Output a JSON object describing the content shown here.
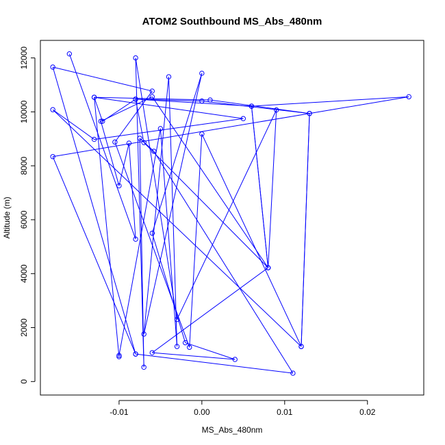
{
  "chart_data": {
    "type": "line",
    "title": "ATOM2 Southbound MS_Abs_480nm",
    "xlabel": "MS_Abs_480nm",
    "ylabel": "Altitude (m)",
    "xlim": [
      -0.0195,
      0.0268
    ],
    "ylim": [
      -500,
      12650
    ],
    "xticks": [
      -0.01,
      0.0,
      0.01,
      0.02
    ],
    "xtick_labels": [
      "-0.01",
      "0.00",
      "0.01",
      "0.02"
    ],
    "yticks": [
      0,
      2000,
      4000,
      6000,
      8000,
      10000,
      12000
    ],
    "ytick_labels": [
      "0",
      "2000",
      "4000",
      "6000",
      "8000",
      "10000",
      "12000"
    ],
    "grid": false,
    "series": [
      {
        "color": "#0000ff",
        "marker": "open-circle",
        "points": [
          {
            "x": -0.016,
            "y": 12150
          },
          {
            "x": -0.008,
            "y": 5280
          },
          {
            "x": -0.0088,
            "y": 8840
          },
          {
            "x": -0.01,
            "y": 7260
          },
          {
            "x": -0.0122,
            "y": 9650
          },
          {
            "x": -0.006,
            "y": 10560
          },
          {
            "x": 0.008,
            "y": 4220
          },
          {
            "x": 0.009,
            "y": 10070
          },
          {
            "x": -0.003,
            "y": 2300
          },
          {
            "x": -0.008,
            "y": 12000
          },
          {
            "x": -0.007,
            "y": 530
          },
          {
            "x": -0.0075,
            "y": 9020
          },
          {
            "x": -0.0058,
            "y": 8540
          },
          {
            "x": 0.011,
            "y": 310
          },
          {
            "x": -0.008,
            "y": 1020
          },
          {
            "x": -0.018,
            "y": 11660
          },
          {
            "x": -0.006,
            "y": 10770
          },
          {
            "x": -0.0105,
            "y": 8880
          },
          {
            "x": -0.0015,
            "y": 1270
          },
          {
            "x": 0.0,
            "y": 9180
          },
          {
            "x": 0.012,
            "y": 1300
          },
          {
            "x": -0.018,
            "y": 10080
          },
          {
            "x": -0.013,
            "y": 8980
          },
          {
            "x": 0.005,
            "y": 9750
          },
          {
            "x": -0.013,
            "y": 10540
          },
          {
            "x": -0.01,
            "y": 920
          },
          {
            "x": -0.01,
            "y": 970
          },
          {
            "x": -0.005,
            "y": 9380
          },
          {
            "x": -0.003,
            "y": 1300
          },
          {
            "x": -0.004,
            "y": 11300
          },
          {
            "x": -0.007,
            "y": 1760
          },
          {
            "x": 0.0,
            "y": 11430
          },
          {
            "x": -0.006,
            "y": 5500
          },
          {
            "x": -0.002,
            "y": 1440
          },
          {
            "x": 0.004,
            "y": 820
          },
          {
            "x": -0.006,
            "y": 1070
          },
          {
            "x": 0.008,
            "y": 4220
          },
          {
            "x": -0.007,
            "y": 8860
          },
          {
            "x": -0.008,
            "y": 10470
          },
          {
            "x": 0.0,
            "y": 10400
          },
          {
            "x": 0.013,
            "y": 9940
          },
          {
            "x": 0.012,
            "y": 1300
          },
          {
            "x": 0.013,
            "y": 9940
          },
          {
            "x": 0.001,
            "y": 10440
          },
          {
            "x": -0.013,
            "y": 10540
          },
          {
            "x": -0.012,
            "y": 9650
          },
          {
            "x": -0.008,
            "y": 10470
          },
          {
            "x": 0.006,
            "y": 10210
          },
          {
            "x": 0.008,
            "y": 4220
          },
          {
            "x": 0.006,
            "y": 10210
          },
          {
            "x": 0.025,
            "y": 10560
          },
          {
            "x": -0.018,
            "y": 8340
          },
          {
            "x": -0.008,
            "y": 1020
          }
        ]
      }
    ]
  }
}
